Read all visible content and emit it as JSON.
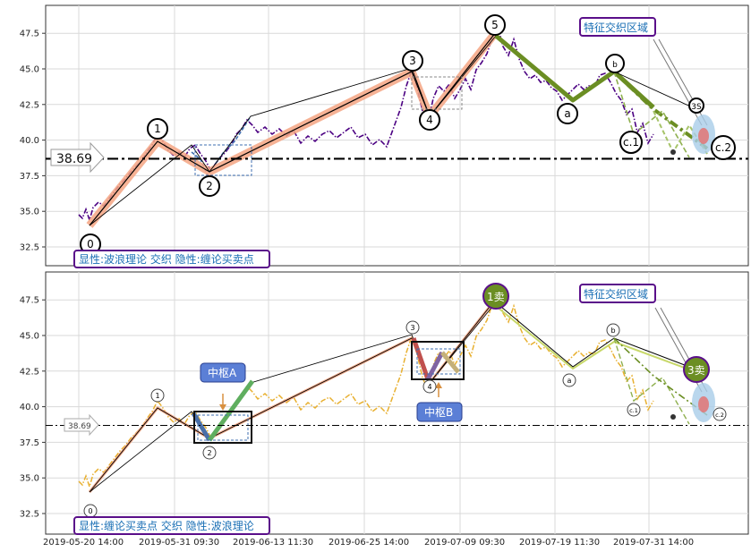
{
  "chart_data": [
    {
      "type": "line",
      "panel": "top",
      "ylim": [
        31.5,
        49.5
      ],
      "yticks": [
        "32.5",
        "35.0",
        "37.5",
        "40.0",
        "42.5",
        "45.0",
        "47.5"
      ],
      "price_marker": "38.69",
      "series": [
        {
          "kind": "price",
          "color": "#4b0082"
        },
        {
          "kind": "wave",
          "color": "#000000"
        },
        {
          "kind": "wave-highlight",
          "color": "#f4a582"
        },
        {
          "kind": "projection",
          "color": "#6b8e23"
        }
      ],
      "wave_labels": [
        "0",
        "1",
        "2",
        "3",
        "4",
        "5",
        "a",
        "b",
        "c.1",
        "c.2",
        "3S"
      ],
      "annotations": {
        "corner_text": "显性:波浪理论 交织 隐性:缠论买卖点",
        "region_text": "特征交织区域"
      }
    },
    {
      "type": "line",
      "panel": "bottom",
      "ylim": [
        31.5,
        49.5
      ],
      "yticks": [
        "32.5",
        "35.0",
        "37.5",
        "40.0",
        "42.5",
        "45.0",
        "47.5"
      ],
      "price_marker": "38.69",
      "series": [
        {
          "kind": "price",
          "color": "#e8b030"
        },
        {
          "kind": "stroke",
          "color": "#000000"
        },
        {
          "kind": "segment",
          "color": "#f4a582"
        },
        {
          "kind": "zhongshu",
          "color": "#000000"
        }
      ],
      "wave_labels": [
        "0",
        "1",
        "2",
        "3",
        "4",
        "a",
        "b",
        "c.1",
        "c.2"
      ],
      "signals": [
        "1卖",
        "3卖"
      ],
      "boxes": [
        "中枢A",
        "中枢B"
      ],
      "annotations": {
        "corner_text": "显性:缠论买卖点 交织 隐性:波浪理论",
        "region_text": "特征交织区域"
      }
    }
  ],
  "x_axis": {
    "ticks": [
      "2019-05-20 14:00",
      "2019-05-31 09:30",
      "2019-06-13 11:30",
      "2019-06-25 14:00",
      "2019-07-09 09:30",
      "2019-07-19 11:30",
      "2019-07-31 14:00"
    ]
  },
  "colors": {
    "purple_box": "#5a0f8a",
    "label_blue": "#1a6fb5",
    "zhongshu_fill": "#5b7fd6",
    "sell_signal": "#6b8e23",
    "dashdot": "#000000"
  }
}
